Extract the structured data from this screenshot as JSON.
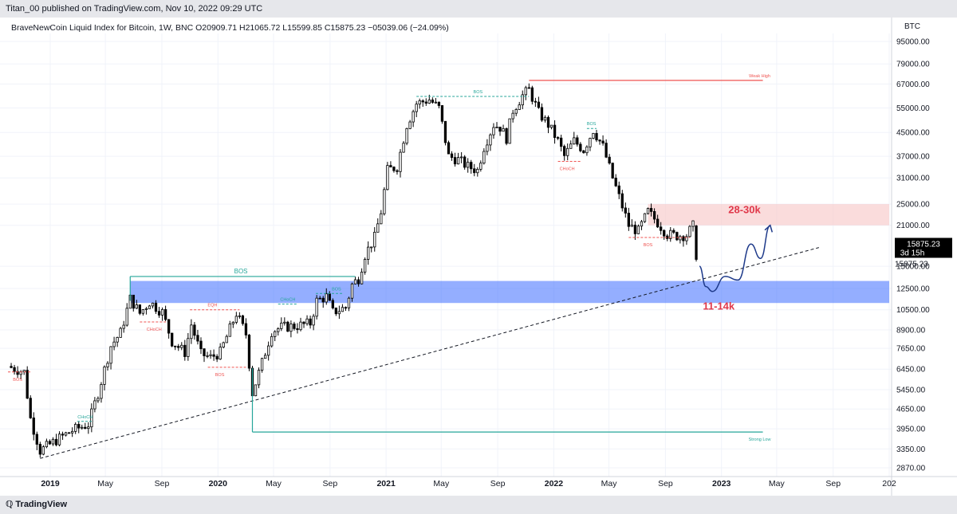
{
  "header": {
    "publisher": "Titan_00 published on TradingView.com, Nov 10, 2022 09:29 UTC"
  },
  "footer": {
    "brand": "TradingView"
  },
  "colors": {
    "bull": "#ffffff",
    "bear": "#000000",
    "bos": "#26a69a",
    "choch": "#ef5350",
    "demand": "#3d6bff",
    "supply": "#f8c9c9",
    "forecast": "#1e3a8a",
    "target": "#e0384a"
  },
  "chart_data": {
    "type": "candlestick",
    "legend": "BraveNewCoin Liquid Index for Bitcoin, 1W, BNC  O20909.71  H21065.72  L15599.85  C15875.23  −05039.06 (−24.09%)",
    "currency": "BTC",
    "y_scale": "log",
    "y_ticks": [
      95000,
      79000,
      67000,
      55000,
      45000,
      37000,
      31000,
      25000,
      21000,
      15000,
      12500,
      10500,
      8900,
      7650,
      6450,
      5450,
      4650,
      3950,
      3350,
      2870
    ],
    "y_tick_labels": [
      "95000.00",
      "79000.00",
      "67000.00",
      "55000.00",
      "45000.00",
      "37000.00",
      "31000.00",
      "25000.00",
      "21000.00",
      "15000.00",
      "12500.00",
      "10500.00",
      "8900.00",
      "7650.00",
      "6450.00",
      "5450.00",
      "4650.00",
      "3950.00",
      "3350.00",
      "2870.00"
    ],
    "x_labels": [
      "2019",
      "May",
      "Sep",
      "2020",
      "May",
      "Sep",
      "2021",
      "May",
      "Sep",
      "2022",
      "May",
      "Sep",
      "2023",
      "May",
      "Sep",
      "202"
    ],
    "x_label_dates": [
      "2019-01-01",
      "2019-05-01",
      "2019-09-01",
      "2020-01-01",
      "2020-05-01",
      "2020-09-01",
      "2021-01-01",
      "2021-05-01",
      "2021-09-01",
      "2022-01-01",
      "2022-05-01",
      "2022-09-01",
      "2023-01-01",
      "2023-05-01",
      "2023-09-01",
      "2024-01-01"
    ],
    "x_range": [
      "2018-10-01",
      "2024-01-01"
    ],
    "last_price": {
      "value": 15875.23,
      "label": "15875.23",
      "countdown": "3d 15h",
      "second_label": "15875.23"
    },
    "price_path": [
      [
        "2018-10-01",
        6600
      ],
      [
        "2018-11-05",
        6300
      ],
      [
        "2018-11-19",
        4300
      ],
      [
        "2018-12-10",
        3300
      ],
      [
        "2019-01-14",
        3600
      ],
      [
        "2019-02-18",
        3900
      ],
      [
        "2019-03-25",
        4100
      ],
      [
        "2019-04-15",
        5300
      ],
      [
        "2019-05-13",
        7800
      ],
      [
        "2019-06-03",
        8700
      ],
      [
        "2019-06-24",
        11500
      ],
      [
        "2019-07-15",
        10200
      ],
      [
        "2019-08-05",
        11200
      ],
      [
        "2019-09-02",
        10300
      ],
      [
        "2019-09-23",
        8100
      ],
      [
        "2019-10-21",
        7400
      ],
      [
        "2019-11-04",
        9300
      ],
      [
        "2019-11-25",
        7300
      ],
      [
        "2019-12-16",
        7100
      ],
      [
        "2020-01-06",
        7400
      ],
      [
        "2020-02-10",
        10200
      ],
      [
        "2020-03-02",
        8600
      ],
      [
        "2020-03-16",
        5300
      ],
      [
        "2020-04-06",
        6800
      ],
      [
        "2020-04-27",
        8800
      ],
      [
        "2020-05-18",
        9100
      ],
      [
        "2020-06-22",
        9200
      ],
      [
        "2020-07-20",
        9400
      ],
      [
        "2020-08-03",
        11300
      ],
      [
        "2020-08-24",
        11700
      ],
      [
        "2020-09-07",
        10300
      ],
      [
        "2020-10-05",
        10700
      ],
      [
        "2020-10-19",
        12900
      ],
      [
        "2020-11-02",
        13600
      ],
      [
        "2020-11-16",
        16500
      ],
      [
        "2020-12-07",
        19000
      ],
      [
        "2020-12-21",
        23500
      ],
      [
        "2021-01-04",
        33000
      ],
      [
        "2021-01-25",
        34000
      ],
      [
        "2021-02-15",
        48000
      ],
      [
        "2021-03-08",
        57000
      ],
      [
        "2021-04-05",
        59000
      ],
      [
        "2021-04-26",
        55000
      ],
      [
        "2021-05-17",
        37000
      ],
      [
        "2021-06-07",
        36000
      ],
      [
        "2021-06-28",
        34000
      ],
      [
        "2021-07-19",
        33000
      ],
      [
        "2021-08-02",
        40000
      ],
      [
        "2021-08-23",
        48000
      ],
      [
        "2021-09-06",
        47000
      ],
      [
        "2021-09-20",
        43000
      ],
      [
        "2021-10-04",
        54000
      ],
      [
        "2021-10-25",
        61000
      ],
      [
        "2021-11-08",
        64000
      ],
      [
        "2021-11-29",
        53000
      ],
      [
        "2021-12-20",
        48000
      ],
      [
        "2022-01-10",
        42000
      ],
      [
        "2022-01-24",
        37000
      ],
      [
        "2022-02-14",
        42000
      ],
      [
        "2022-03-07",
        39000
      ],
      [
        "2022-03-28",
        46000
      ],
      [
        "2022-04-18",
        40000
      ],
      [
        "2022-05-09",
        31000
      ],
      [
        "2022-06-13",
        21000
      ],
      [
        "2022-07-04",
        20000
      ],
      [
        "2022-07-25",
        23500
      ],
      [
        "2022-08-15",
        21500
      ],
      [
        "2022-09-05",
        19500
      ],
      [
        "2022-09-26",
        19300
      ],
      [
        "2022-10-17",
        19400
      ],
      [
        "2022-10-31",
        20900
      ],
      [
        "2022-11-07",
        15875
      ]
    ],
    "zones": [
      {
        "kind": "demand",
        "from": "2019-06-24",
        "to": "2024-01-01",
        "top": 13300,
        "bottom": 11100
      },
      {
        "kind": "supply",
        "from": "2022-07-25",
        "to": "2024-01-01",
        "top": 25000,
        "bottom": 21000
      }
    ],
    "annotations": [
      {
        "kind": "BOS",
        "text": "BOS",
        "color": "bos",
        "price": 13800
      },
      {
        "kind": "BOS",
        "text": "BOS",
        "color": "bos",
        "price": 60500
      },
      {
        "kind": "BOS",
        "text": "BOS",
        "color": "bos",
        "price": 46500
      },
      {
        "kind": "BOS",
        "text": "BOS",
        "color": "bos",
        "price": 12000
      },
      {
        "kind": "CHoCH",
        "text": "CHoCH",
        "color": "bos",
        "price": 11000
      },
      {
        "kind": "CHoCH",
        "text": "CHoCH",
        "color": "bos",
        "price": 4200
      },
      {
        "kind": "BOS",
        "text": "BOS",
        "color": "choch",
        "price": 6300
      },
      {
        "kind": "CHoCH",
        "text": "CHoCH",
        "color": "choch",
        "price": 9500
      },
      {
        "kind": "EQH",
        "text": "EQH",
        "color": "choch",
        "price": 10500
      },
      {
        "kind": "BOS",
        "text": "BOS",
        "color": "choch",
        "price": 6550
      },
      {
        "kind": "CHoCH",
        "text": "CHoCH",
        "color": "choch",
        "price": 35500
      },
      {
        "kind": "BOS",
        "text": "BOS",
        "color": "choch",
        "price": 19000
      },
      {
        "kind": "high",
        "text": "Weak High",
        "color": "choch",
        "price": 69000
      },
      {
        "kind": "low",
        "text": "Strong Low",
        "color": "bos",
        "price": 3850
      }
    ],
    "targets": [
      {
        "text": "28-30k"
      },
      {
        "text": "11-14k"
      }
    ],
    "trendline": {
      "from": [
        "2018-12-10",
        3100
      ],
      "to": [
        "2023-08-01",
        17500
      ]
    },
    "forecast_path": [
      [
        "2022-11-14",
        15000
      ],
      [
        "2022-11-28",
        12700
      ],
      [
        "2022-12-12",
        12200
      ],
      [
        "2023-01-09",
        13800
      ],
      [
        "2023-02-06",
        13400
      ],
      [
        "2023-03-06",
        18000
      ],
      [
        "2023-03-27",
        16000
      ],
      [
        "2023-04-17",
        21000
      ]
    ]
  }
}
